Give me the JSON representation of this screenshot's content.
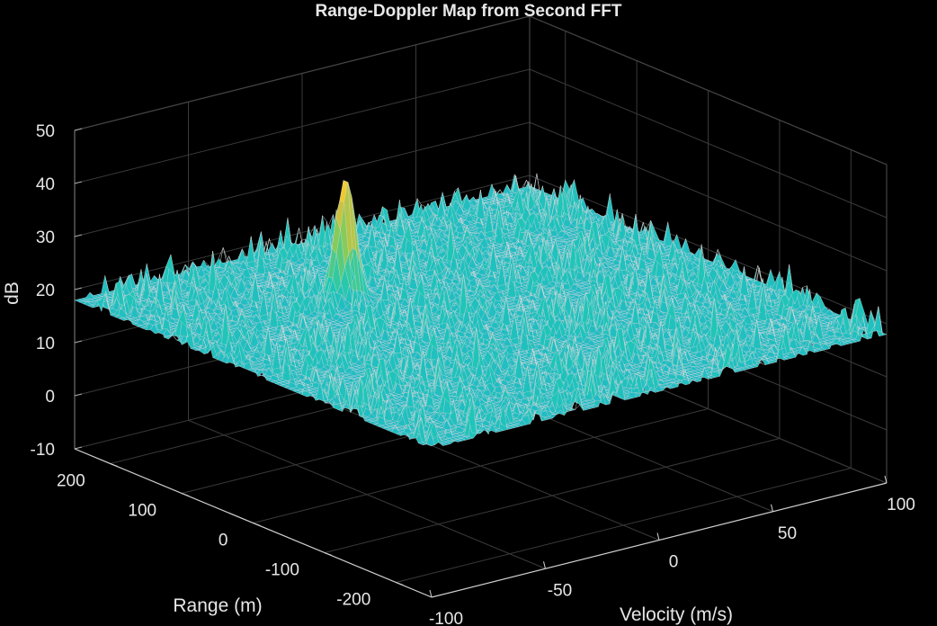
{
  "chart_data": {
    "type": "surface",
    "title": "Range-Doppler Map from Second FFT",
    "xlabel": "Velocity (m/s)",
    "ylabel": "Range (m)",
    "zlabel": "dB",
    "xlim": [
      -100,
      100
    ],
    "ylim": [
      -250,
      250
    ],
    "zlim": [
      -10,
      50
    ],
    "x_ticks": [
      "-100",
      "-50",
      "0",
      "50",
      "100"
    ],
    "x_tick_values": [
      -100,
      -50,
      0,
      50,
      100
    ],
    "y_ticks": [
      "-200",
      "-100",
      "0",
      "100",
      "200"
    ],
    "y_tick_values": [
      -200,
      -100,
      0,
      100,
      200
    ],
    "z_ticks": [
      "-10",
      "0",
      "10",
      "20",
      "30",
      "40",
      "50"
    ],
    "z_tick_values": [
      -10,
      0,
      10,
      20,
      30,
      40,
      50
    ],
    "noise_floor_db": 20,
    "noise_spread_db": 8,
    "peak": {
      "velocity": -25,
      "range": 110,
      "level_db": 40
    },
    "grid": true,
    "colormap": "parula",
    "background": "#000000"
  }
}
